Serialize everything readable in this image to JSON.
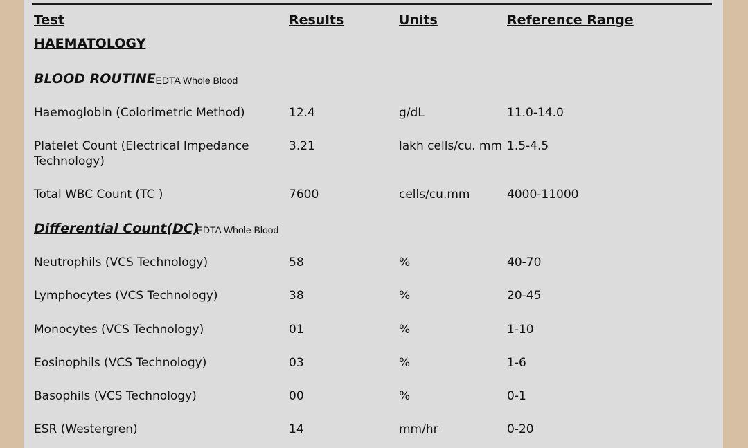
{
  "columns": [
    "Test",
    "Results",
    "Units",
    "Reference Range"
  ],
  "department": "HAEMATOLOGY",
  "sections": [
    {
      "title": "BLOOD ROUTINE",
      "specimen": "-  EDTA Whole Blood",
      "rows": [
        {
          "test": "Haemoglobin (Colorimetric Method)",
          "result": "12.4",
          "unit": "g/dL",
          "range": "11.0-14.0"
        },
        {
          "test": "Platelet Count (Electrical Impedance Technology)",
          "result": "3.21",
          "unit": "lakh cells/cu. mm",
          "range": "1.5-4.5"
        },
        {
          "test": "Total WBC Count (TC )",
          "result": "7600",
          "unit": "cells/cu.mm",
          "range": "4000-11000"
        }
      ]
    },
    {
      "title": "Differential Count(DC)",
      "specimen": "-  EDTA Whole Blood",
      "rows": [
        {
          "test": "Neutrophils (VCS Technology)",
          "result": "58",
          "unit": "%",
          "range": "40-70"
        },
        {
          "test": "Lymphocytes (VCS Technology)",
          "result": "38",
          "unit": "%",
          "range": "20-45"
        },
        {
          "test": "Monocytes (VCS Technology)",
          "result": "01",
          "unit": "%",
          "range": "1-10"
        },
        {
          "test": "Eosinophils (VCS Technology)",
          "result": "03",
          "unit": "%",
          "range": "1-6"
        },
        {
          "test": "Basophils (VCS Technology)",
          "result": "00",
          "unit": "%",
          "range": "0-1"
        },
        {
          "test": "ESR (Westergren)",
          "result": "14",
          "unit": "mm/hr",
          "range": "0-20"
        }
      ]
    }
  ]
}
